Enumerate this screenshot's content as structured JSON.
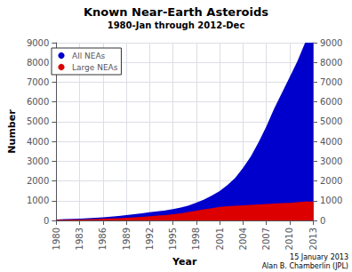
{
  "chart_data": {
    "type": "area",
    "title": "Known Near-Earth Asteroids",
    "subtitle": "1980-Jan through 2012-Dec",
    "xlabel": "Year",
    "ylabel": "Number",
    "annotations": [
      "15 January 2013\nAlan B. Chamberlin (JPL)"
    ],
    "x": [
      1980,
      1981,
      1982,
      1983,
      1984,
      1985,
      1986,
      1987,
      1988,
      1989,
      1990,
      1991,
      1992,
      1993,
      1994,
      1995,
      1996,
      1997,
      1998,
      1999,
      2000,
      2001,
      2002,
      2003,
      2004,
      2005,
      2006,
      2007,
      2008,
      2009,
      2010,
      2011,
      2012,
      2013
    ],
    "series": [
      {
        "name": "All NEAs",
        "color": "#0000cc",
        "values": [
          50,
          62,
          76,
          92,
          110,
          132,
          158,
          190,
          228,
          270,
          315,
          365,
          415,
          462,
          510,
          570,
          650,
          755,
          900,
          1060,
          1260,
          1480,
          1790,
          2150,
          2650,
          3230,
          3950,
          4750,
          5650,
          6450,
          7250,
          8050,
          9000,
          9000
        ]
      },
      {
        "name": "Large NEAs",
        "color": "#dd0000",
        "values": [
          30,
          35,
          42,
          50,
          60,
          72,
          85,
          100,
          118,
          138,
          158,
          182,
          212,
          242,
          272,
          312,
          362,
          422,
          492,
          562,
          622,
          682,
          722,
          742,
          762,
          792,
          812,
          832,
          852,
          872,
          892,
          922,
          960,
          960
        ]
      }
    ],
    "xlim": [
      1980,
      2013
    ],
    "xticks": [
      1980,
      1983,
      1986,
      1989,
      1992,
      1995,
      1998,
      2001,
      2004,
      2007,
      2010,
      2013
    ],
    "ylim": [
      0,
      9000
    ],
    "yticks": [
      0,
      1000,
      2000,
      3000,
      4000,
      5000,
      6000,
      7000,
      8000,
      9000
    ],
    "y2lim": [
      0,
      9000
    ],
    "y2ticks": [
      0,
      1000,
      2000,
      3000,
      4000,
      5000,
      6000,
      7000,
      8000,
      9000
    ],
    "grid": true,
    "legend": "upper left"
  }
}
